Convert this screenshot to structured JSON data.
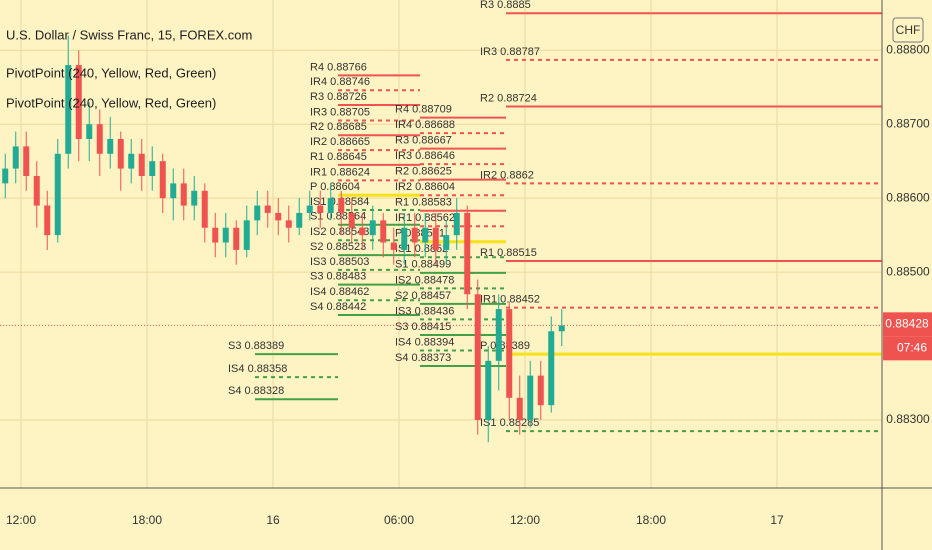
{
  "chart_data": {
    "type": "candlestick",
    "title": "U.S. Dollar / Swiss Franc, 15, FOREX.com",
    "indicators": [
      "PivotPoint (240, Yellow, Red, Green)",
      "PivotPoint (240, Yellow, Red, Green)"
    ],
    "currency": "CHF",
    "colors": {
      "up": "#22ab94",
      "down": "#ef5350",
      "resistance": "#f05350",
      "pivot": "#f5e21a",
      "support": "#43a047"
    },
    "grid": true,
    "xlim": [
      0,
      42
    ],
    "xticks": [
      {
        "value": 1,
        "label": "12:00"
      },
      {
        "value": 7,
        "label": "18:00"
      },
      {
        "value": 13,
        "label": "16"
      },
      {
        "value": 19,
        "label": "06:00"
      },
      {
        "value": 25,
        "label": "12:00"
      },
      {
        "value": 31,
        "label": "18:00"
      },
      {
        "value": 37,
        "label": "17"
      }
    ],
    "ylim": [
      0.88208,
      0.88868
    ],
    "yticks": [
      {
        "value": 0.883,
        "label": "0.88300"
      },
      {
        "value": 0.885,
        "label": "0.88500"
      },
      {
        "value": 0.886,
        "label": "0.88600"
      },
      {
        "value": 0.887,
        "label": "0.88700"
      },
      {
        "value": 0.888,
        "label": "0.88800"
      }
    ],
    "x": [
      0.25,
      0.75,
      1.25,
      1.75,
      2.25,
      2.75,
      3.25,
      3.75,
      4.25,
      4.75,
      5.25,
      5.75,
      6.25,
      6.75,
      7.25,
      7.75,
      8.25,
      8.75,
      9.25,
      9.75,
      10.25,
      10.75,
      11.25,
      11.75,
      12.25,
      12.75,
      13.25,
      13.75,
      14.25,
      14.75,
      15.25,
      15.75,
      16.25,
      16.75,
      17.25,
      17.75,
      18.25,
      18.75,
      19.25,
      19.75,
      20.25,
      20.75,
      21.25,
      21.75,
      22.25,
      22.75,
      23.25,
      23.75,
      24.25,
      24.75,
      25.25,
      25.75,
      26.25,
      26.75
    ],
    "open": [
      0.8862,
      0.8864,
      0.8867,
      0.8863,
      0.8859,
      0.8855,
      0.8866,
      0.8878,
      0.8868,
      0.887,
      0.8866,
      0.8868,
      0.8864,
      0.8866,
      0.8863,
      0.8865,
      0.886,
      0.8862,
      0.8859,
      0.8861,
      0.8856,
      0.8854,
      0.8856,
      0.8853,
      0.8857,
      0.8859,
      0.8858,
      0.8857,
      0.8856,
      0.8858,
      0.8859,
      0.8858,
      0.886,
      0.8858,
      0.8856,
      0.8855,
      0.8857,
      0.8854,
      0.8853,
      0.8856,
      0.8854,
      0.8856,
      0.8853,
      0.8855,
      0.8858,
      0.8847,
      0.883,
      0.8838,
      0.8845,
      0.8833,
      0.883,
      0.8836,
      0.8832,
      0.8842
    ],
    "high": [
      0.8866,
      0.8869,
      0.8869,
      0.8865,
      0.8861,
      0.8868,
      0.8882,
      0.888,
      0.8873,
      0.8872,
      0.8871,
      0.8869,
      0.8868,
      0.8868,
      0.8867,
      0.8866,
      0.8864,
      0.8864,
      0.8863,
      0.8862,
      0.8858,
      0.8858,
      0.8857,
      0.8859,
      0.8861,
      0.8861,
      0.886,
      0.8859,
      0.886,
      0.8861,
      0.8861,
      0.8862,
      0.8861,
      0.886,
      0.8858,
      0.8859,
      0.8858,
      0.8856,
      0.8858,
      0.8858,
      0.8858,
      0.8858,
      0.8857,
      0.886,
      0.8859,
      0.8849,
      0.884,
      0.8847,
      0.8846,
      0.8836,
      0.8838,
      0.8838,
      0.8844,
      0.8845
    ],
    "low": [
      0.886,
      0.8862,
      0.8861,
      0.8856,
      0.8853,
      0.8854,
      0.8864,
      0.8865,
      0.8865,
      0.8863,
      0.8864,
      0.8861,
      0.8862,
      0.8861,
      0.8861,
      0.8858,
      0.8857,
      0.8857,
      0.8857,
      0.8854,
      0.8852,
      0.8852,
      0.8851,
      0.8852,
      0.8855,
      0.8856,
      0.8855,
      0.8854,
      0.8855,
      0.8857,
      0.8856,
      0.8857,
      0.8855,
      0.8854,
      0.8853,
      0.8853,
      0.8852,
      0.8851,
      0.8851,
      0.8852,
      0.8852,
      0.8851,
      0.8851,
      0.8853,
      0.8845,
      0.8828,
      0.8827,
      0.8834,
      0.883,
      0.8828,
      0.8829,
      0.883,
      0.8831,
      0.884
    ],
    "close": [
      0.8864,
      0.8867,
      0.8863,
      0.8859,
      0.8855,
      0.8866,
      0.8878,
      0.8868,
      0.887,
      0.8866,
      0.8868,
      0.8864,
      0.8866,
      0.8863,
      0.8865,
      0.886,
      0.8862,
      0.8859,
      0.8861,
      0.8856,
      0.8854,
      0.8856,
      0.8853,
      0.8857,
      0.8859,
      0.8858,
      0.8857,
      0.8856,
      0.8858,
      0.8859,
      0.8858,
      0.886,
      0.8858,
      0.8856,
      0.8855,
      0.8857,
      0.8854,
      0.8853,
      0.8856,
      0.8854,
      0.8856,
      0.8853,
      0.8855,
      0.8858,
      0.8847,
      0.883,
      0.8838,
      0.8845,
      0.8833,
      0.883,
      0.8836,
      0.8832,
      0.8842,
      0.88428
    ],
    "last_price": {
      "value": 0.88428,
      "label": "0.88428"
    },
    "countdown": "07:46",
    "pivot_sets": [
      {
        "levels": [
          {
            "label": "S3 0.88389",
            "value": 0.88389
          },
          {
            "label": "IS4 0.88358",
            "value": 0.88358
          },
          {
            "label": "S4 0.88328",
            "value": 0.88328
          }
        ]
      },
      {
        "levels": [
          {
            "label": "R4 0.88766",
            "value": 0.88766
          },
          {
            "label": "IR4 0.88746",
            "value": 0.88746
          },
          {
            "label": "R3 0.88726",
            "value": 0.88726
          },
          {
            "label": "IR3 0.88705",
            "value": 0.88705
          },
          {
            "label": "R2 0.88685",
            "value": 0.88685
          },
          {
            "label": "IR2 0.88665",
            "value": 0.88665
          },
          {
            "label": "R1 0.88645",
            "value": 0.88645
          },
          {
            "label": "IR1 0.88624",
            "value": 0.88624
          },
          {
            "label": "P 0.88604",
            "value": 0.88604
          },
          {
            "label": "IS1 0.88584",
            "value": 0.88584
          },
          {
            "label": "S1 0.88564",
            "value": 0.88564
          },
          {
            "label": "IS2 0.88543",
            "value": 0.88543
          },
          {
            "label": "S2 0.88523",
            "value": 0.88523
          },
          {
            "label": "IS3 0.88503",
            "value": 0.88503
          },
          {
            "label": "S3 0.88483",
            "value": 0.88483
          },
          {
            "label": "IS4 0.88462",
            "value": 0.88462
          },
          {
            "label": "S4 0.88442",
            "value": 0.88442
          }
        ]
      },
      {
        "levels": [
          {
            "label": "R4 0.88709",
            "value": 0.88709
          },
          {
            "label": "IR4 0.88688",
            "value": 0.88688
          },
          {
            "label": "R3 0.88667",
            "value": 0.88667
          },
          {
            "label": "IR3 0.88646",
            "value": 0.88646
          },
          {
            "label": "R2 0.88625",
            "value": 0.88625
          },
          {
            "label": "IR2 0.88604",
            "value": 0.88604
          },
          {
            "label": "R1 0.88583",
            "value": 0.88583
          },
          {
            "label": "IR1 0.88562",
            "value": 0.88562
          },
          {
            "label": "P 0.88541",
            "value": 0.88541
          },
          {
            "label": "IS1 0.8852",
            "value": 0.8852
          },
          {
            "label": "S1 0.88499",
            "value": 0.88499
          },
          {
            "label": "IS2 0.88478",
            "value": 0.88478
          },
          {
            "label": "S2 0.88457",
            "value": 0.88457
          },
          {
            "label": "IS3 0.88436",
            "value": 0.88436
          },
          {
            "label": "S3 0.88415",
            "value": 0.88415
          },
          {
            "label": "IS4 0.88394",
            "value": 0.88394
          },
          {
            "label": "S4 0.88373",
            "value": 0.88373
          }
        ]
      },
      {
        "levels": [
          {
            "label": "R3 0.8885",
            "value": 0.8885
          },
          {
            "label": "IR3 0.88787",
            "value": 0.88787
          },
          {
            "label": "R2 0.88724",
            "value": 0.88724
          },
          {
            "label": "IR2 0.8862",
            "value": 0.8862
          },
          {
            "label": "R1 0.88515",
            "value": 0.88515
          },
          {
            "label": "IR1 0.88452",
            "value": 0.88452
          },
          {
            "label": "P 0.88389",
            "value": 0.88389
          },
          {
            "label": "IS1 0.88285",
            "value": 0.88285
          }
        ]
      }
    ]
  }
}
